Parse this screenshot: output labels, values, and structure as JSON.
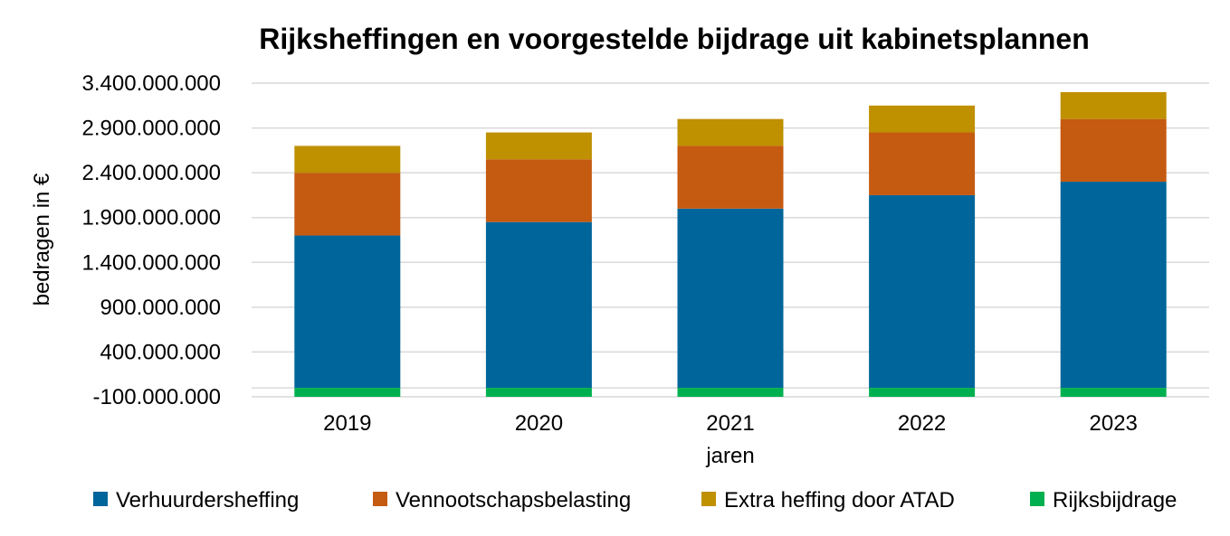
{
  "chart_data": {
    "type": "bar",
    "stacked": true,
    "title": "Rijksheffingen en voorgestelde bijdrage uit kabinetsplannen",
    "xlabel": "jaren",
    "ylabel": "bedragen in €",
    "categories": [
      "2019",
      "2020",
      "2021",
      "2022",
      "2023"
    ],
    "ylim": [
      -100000000,
      3400000000
    ],
    "yticks": [
      -100000000,
      400000000,
      900000000,
      1400000000,
      1900000000,
      2400000000,
      2900000000,
      3400000000
    ],
    "ytick_labels": [
      "-100.000.000",
      "400.000.000",
      "900.000.000",
      "1.400.000.000",
      "1.900.000.000",
      "2.400.000.000",
      "2.900.000.000",
      "3.400.000.000"
    ],
    "grid": true,
    "legend_position": "bottom",
    "series": [
      {
        "name": "Verhuurdersheffing",
        "color": "#00659a",
        "values": [
          1700000000,
          1850000000,
          2000000000,
          2150000000,
          2300000000
        ]
      },
      {
        "name": "Vennootschapsbelasting",
        "color": "#c55a11",
        "values": [
          700000000,
          700000000,
          700000000,
          700000000,
          700000000
        ]
      },
      {
        "name": "Extra heffing door ATAD",
        "color": "#bf9000",
        "values": [
          300000000,
          300000000,
          300000000,
          300000000,
          300000000
        ]
      },
      {
        "name": "Rijksbijdrage",
        "color": "#00b050",
        "values": [
          -100000000,
          -100000000,
          -100000000,
          -100000000,
          -100000000
        ]
      }
    ]
  }
}
